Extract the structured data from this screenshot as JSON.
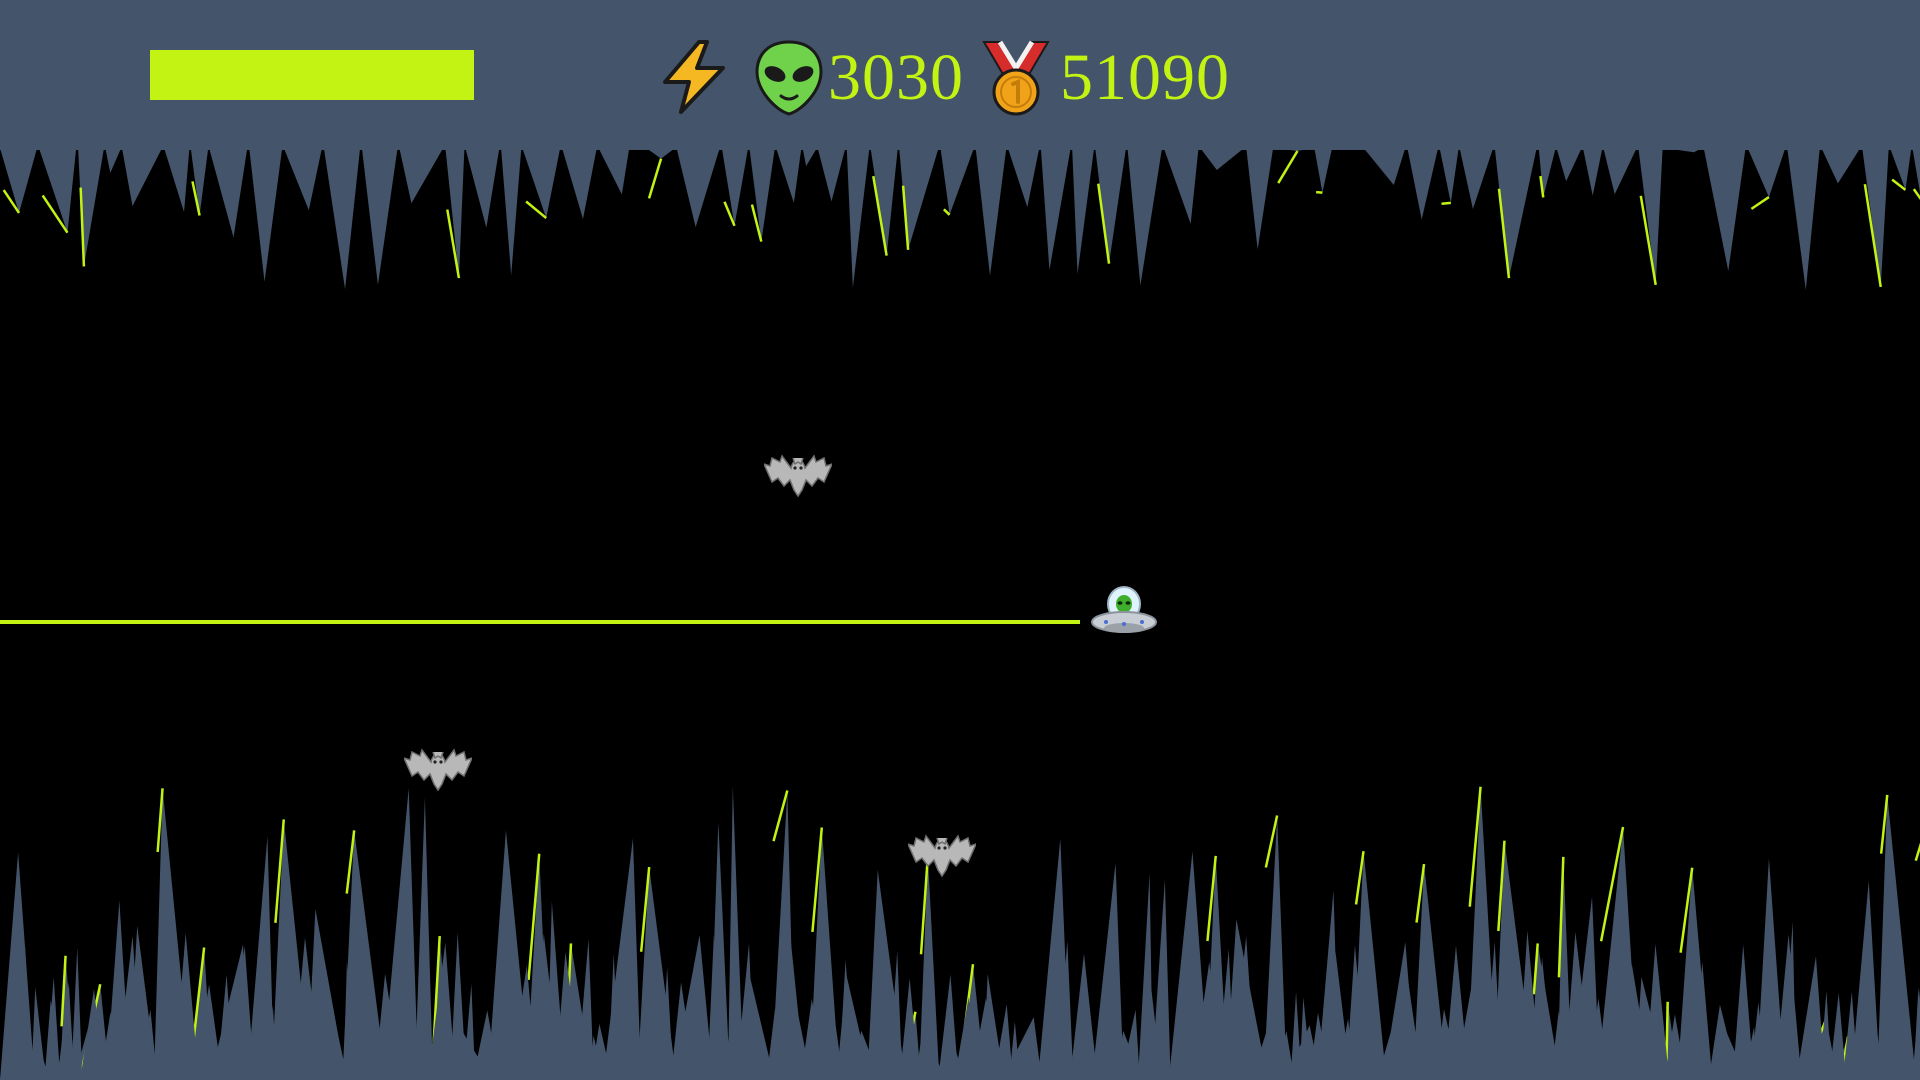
{
  "hud": {
    "energy_level": 1.0,
    "power_icon": "lightning-bolt-icon",
    "alien_icon": "alien-face-icon",
    "aliens_score": "3030",
    "medal_icon": "gold-medal-icon",
    "best_score": "51090"
  },
  "entities": {
    "player": "ufo-with-alien",
    "enemies": [
      "bat",
      "bat",
      "bat"
    ]
  },
  "colors": {
    "sky": "#44546a",
    "cave": "#000000",
    "accent": "#c2f312",
    "bat": "#b8b8b8",
    "alien_green": "#6fd24a",
    "bolt": "#f5b722",
    "medal_ribbon": "#d62c2c",
    "medal_gold": "#f0a318"
  }
}
